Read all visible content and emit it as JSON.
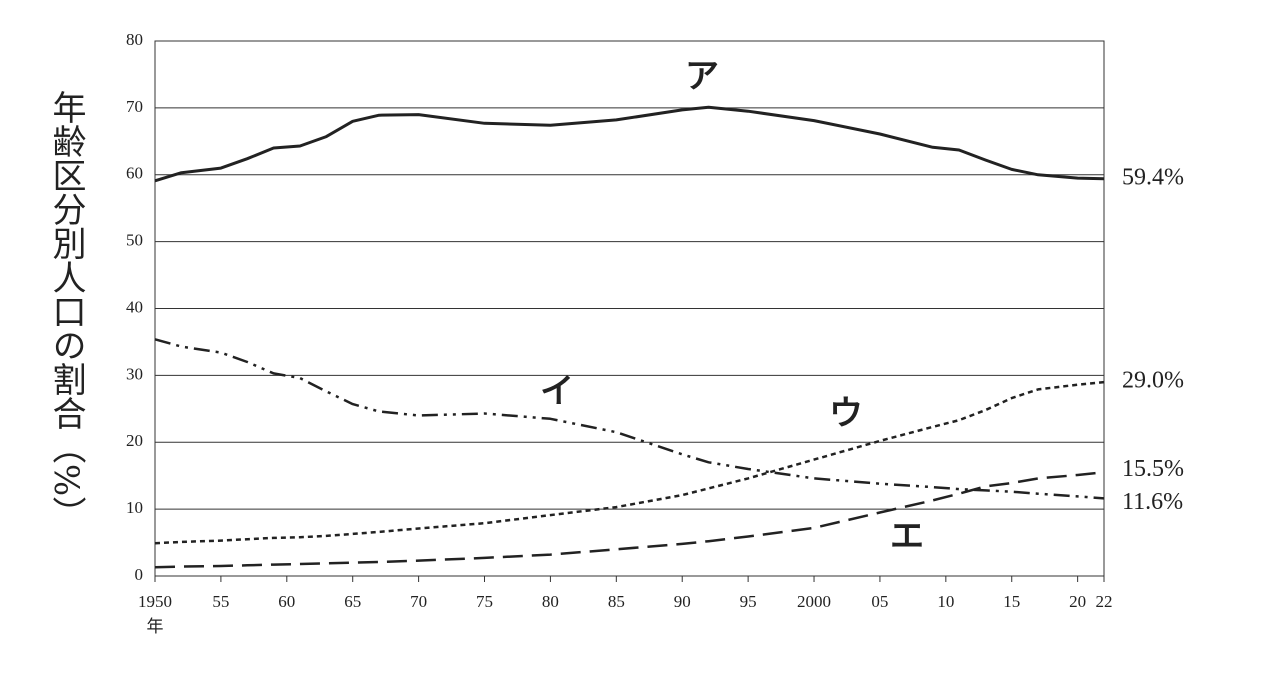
{
  "chart_data": {
    "type": "line",
    "y_label": "年齢区分別人口の割合（%）",
    "x_label": "年",
    "x": [
      1950,
      1952,
      1955,
      1957,
      1959,
      1961,
      1963,
      1965,
      1967,
      1970,
      1975,
      1980,
      1985,
      1990,
      1992,
      1995,
      2000,
      2005,
      2009,
      2011,
      2013,
      2015,
      2017,
      2020,
      2022
    ],
    "series": [
      {
        "name": "ア",
        "color": "#222222",
        "dash": "solid",
        "values": [
          59.1,
          60.3,
          61.0,
          62.4,
          64.0,
          64.3,
          65.7,
          68.0,
          68.9,
          69.0,
          67.7,
          67.4,
          68.2,
          69.7,
          70.1,
          69.5,
          68.1,
          66.1,
          64.1,
          63.7,
          62.2,
          60.8,
          60.0,
          59.5,
          59.4
        ],
        "value_labels": [
          null,
          null,
          null,
          null,
          null,
          null,
          null,
          null,
          null,
          null,
          null,
          null,
          null,
          null,
          null,
          null,
          null,
          null,
          null,
          null,
          null,
          null,
          null,
          null,
          "59.4%"
        ]
      },
      {
        "name": "イ",
        "color": "#222222",
        "dash": "dash-dot-dot",
        "values": [
          35.4,
          34.3,
          33.4,
          32.0,
          30.3,
          29.6,
          27.6,
          25.7,
          24.6,
          24.0,
          24.3,
          23.5,
          21.5,
          18.2,
          17.0,
          16.0,
          14.6,
          13.8,
          13.3,
          13.0,
          12.8,
          12.6,
          12.3,
          11.9,
          11.6
        ],
        "value_labels": [
          null,
          null,
          null,
          null,
          null,
          null,
          null,
          null,
          null,
          null,
          null,
          null,
          null,
          null,
          null,
          null,
          null,
          null,
          null,
          null,
          null,
          null,
          null,
          null,
          "11.6%"
        ]
      },
      {
        "name": "ウ",
        "color": "#222222",
        "dash": "short-dash",
        "values": [
          4.9,
          5.1,
          5.3,
          5.5,
          5.7,
          5.8,
          6.0,
          6.3,
          6.6,
          7.1,
          7.9,
          9.1,
          10.3,
          12.1,
          13.1,
          14.6,
          17.4,
          20.2,
          22.3,
          23.3,
          24.8,
          26.6,
          27.9,
          28.6,
          29.0
        ],
        "value_labels": [
          null,
          null,
          null,
          null,
          null,
          null,
          null,
          null,
          null,
          null,
          null,
          null,
          null,
          null,
          null,
          null,
          null,
          null,
          null,
          null,
          null,
          null,
          null,
          null,
          "29.0%"
        ]
      },
      {
        "name": "エ",
        "color": "#222222",
        "dash": "long-dash",
        "values": [
          1.3,
          1.4,
          1.5,
          1.6,
          1.7,
          1.8,
          1.9,
          2.0,
          2.1,
          2.3,
          2.7,
          3.2,
          4.0,
          4.8,
          5.2,
          5.9,
          7.2,
          9.5,
          11.3,
          12.3,
          13.4,
          13.9,
          14.6,
          15.1,
          15.5
        ],
        "value_labels": [
          null,
          null,
          null,
          null,
          null,
          null,
          null,
          null,
          null,
          null,
          null,
          null,
          null,
          null,
          null,
          null,
          null,
          null,
          null,
          null,
          null,
          null,
          null,
          null,
          "15.5%"
        ]
      }
    ],
    "xlim": [
      1950,
      2022
    ],
    "xticks": [
      1950,
      {
        "value": 1955,
        "label": "55"
      },
      {
        "value": 1960,
        "label": "60"
      },
      {
        "value": 1965,
        "label": "65"
      },
      {
        "value": 1970,
        "label": "70"
      },
      {
        "value": 1975,
        "label": "75"
      },
      {
        "value": 1980,
        "label": "80"
      },
      {
        "value": 1985,
        "label": "85"
      },
      {
        "value": 1990,
        "label": "90"
      },
      {
        "value": 1995,
        "label": "95"
      },
      2000,
      {
        "value": 2005,
        "label": "05"
      },
      {
        "value": 2010,
        "label": "10"
      },
      {
        "value": 2015,
        "label": "15"
      },
      {
        "value": 2020,
        "label": "20"
      },
      {
        "value": 2022,
        "label": "22"
      }
    ],
    "ylim": [
      0,
      80
    ],
    "yticks": [
      0,
      10,
      20,
      30,
      40,
      50,
      60,
      70,
      80
    ],
    "grid": true
  }
}
